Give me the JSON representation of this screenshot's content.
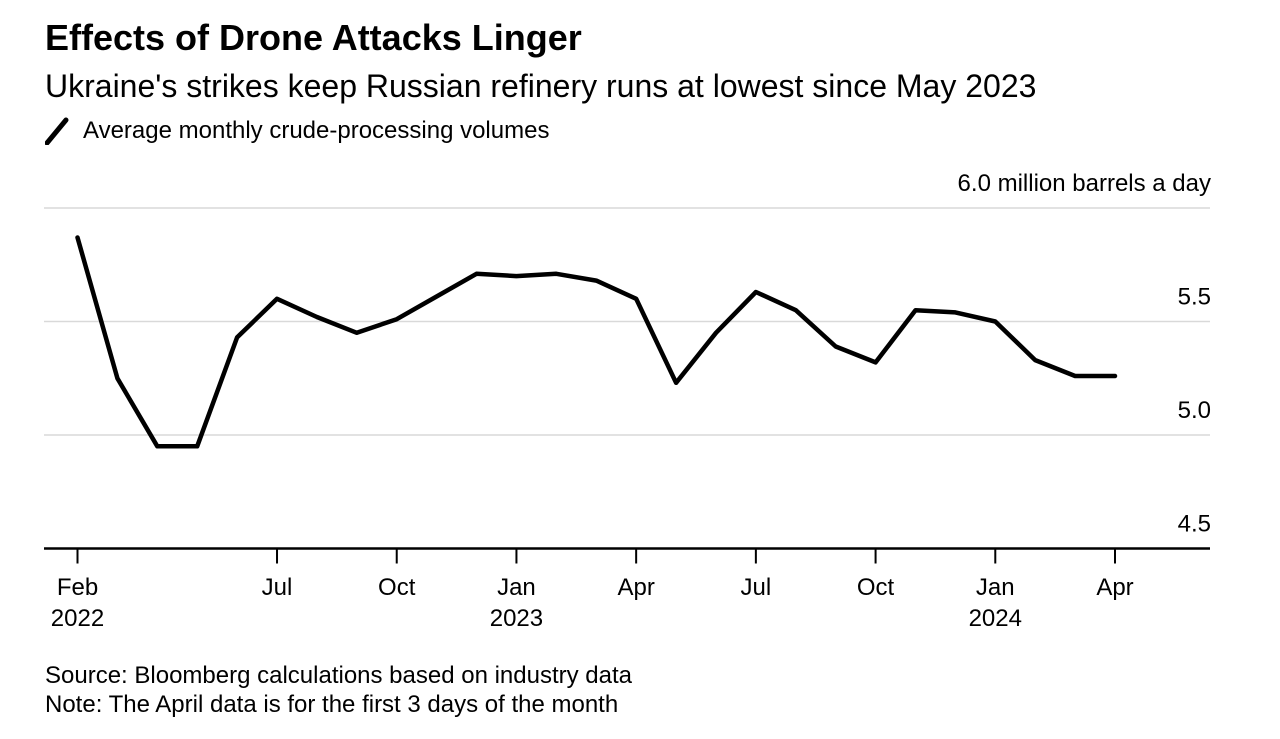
{
  "header": {
    "title": "Effects of Drone Attacks Linger",
    "subtitle": "Ukraine's strikes keep Russian refinery runs at lowest since May 2023",
    "legend": {
      "marker": "diagonal-line-icon",
      "series_label": "Average monthly crude-processing volumes"
    }
  },
  "chart_data": {
    "type": "line",
    "title": "Effects of Drone Attacks Linger",
    "subtitle": "Ukraine's strikes keep Russian refinery runs at lowest since May 2023",
    "series_name": "Average monthly crude-processing volumes",
    "ylabel": "million barrels a day",
    "unit_top_label": "6.0 million barrels a day",
    "ylim": [
      4.5,
      6.0
    ],
    "grid": "horizontal",
    "legend_position": "top-left",
    "yticks": [
      {
        "value": 6.0,
        "label": "6.0 million barrels a day",
        "gridline": true
      },
      {
        "value": 5.5,
        "label": "5.5",
        "gridline": true
      },
      {
        "value": 5.0,
        "label": "5.0",
        "gridline": true
      },
      {
        "value": 4.5,
        "label": "4.5",
        "gridline": false
      }
    ],
    "x": [
      "Feb 2022",
      "Mar 2022",
      "Apr 2022",
      "May 2022",
      "Jun 2022",
      "Jul 2022",
      "Aug 2022",
      "Sep 2022",
      "Oct 2022",
      "Nov 2022",
      "Dec 2022",
      "Jan 2023",
      "Feb 2023",
      "Mar 2023",
      "Apr 2023",
      "May 2023",
      "Jun 2023",
      "Jul 2023",
      "Aug 2023",
      "Sep 2023",
      "Oct 2023",
      "Nov 2023",
      "Dec 2023",
      "Jan 2024",
      "Feb 2024",
      "Mar 2024",
      "Apr 2024"
    ],
    "values": [
      5.87,
      5.25,
      4.95,
      4.95,
      5.43,
      5.6,
      5.52,
      5.45,
      5.51,
      5.61,
      5.71,
      5.7,
      5.71,
      5.68,
      5.6,
      5.23,
      5.45,
      5.63,
      5.55,
      5.39,
      5.32,
      5.55,
      5.54,
      5.5,
      5.33,
      5.26,
      5.26
    ],
    "xticks": [
      {
        "index": 0,
        "label": "Feb",
        "year": "2022"
      },
      {
        "index": 5,
        "label": "Jul"
      },
      {
        "index": 8,
        "label": "Oct"
      },
      {
        "index": 11,
        "label": "Jan",
        "year": "2023"
      },
      {
        "index": 14,
        "label": "Apr"
      },
      {
        "index": 17,
        "label": "Jul"
      },
      {
        "index": 20,
        "label": "Oct"
      },
      {
        "index": 23,
        "label": "Jan",
        "year": "2024"
      },
      {
        "index": 26,
        "label": "Apr"
      }
    ],
    "colors": {
      "line": "#000000",
      "grid": "#d9d9d9",
      "axis": "#000000",
      "text": "#000000"
    }
  },
  "footer": {
    "source": "Source: Bloomberg calculations based on industry data",
    "note": "Note: The April data is for the first 3 days of the month"
  }
}
